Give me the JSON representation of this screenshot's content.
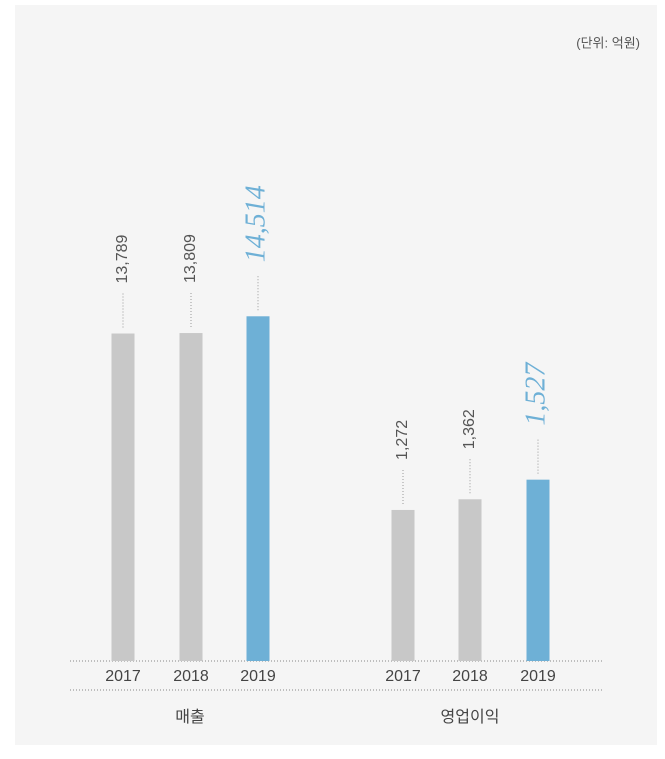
{
  "unit_note": "(단위: 억원)",
  "chart_data": [
    {
      "type": "bar",
      "title": "매출",
      "categories": [
        "2017",
        "2018",
        "2019"
      ],
      "values": [
        13789,
        13809,
        14514
      ],
      "value_labels": [
        "13,789",
        "13,809",
        "14,514"
      ],
      "colors": [
        "#c8c8c8",
        "#c8c8c8",
        "#6eb0d6"
      ],
      "highlight": [
        false,
        false,
        true
      ],
      "ylim": [
        0,
        16000
      ]
    },
    {
      "type": "bar",
      "title": "영업이익",
      "categories": [
        "2017",
        "2018",
        "2019"
      ],
      "values": [
        1272,
        1362,
        1527
      ],
      "value_labels": [
        "1,272",
        "1,362",
        "1,527"
      ],
      "colors": [
        "#c8c8c8",
        "#c8c8c8",
        "#6eb0d6"
      ],
      "highlight": [
        false,
        false,
        true
      ],
      "ylim": [
        0,
        3200
      ]
    }
  ]
}
